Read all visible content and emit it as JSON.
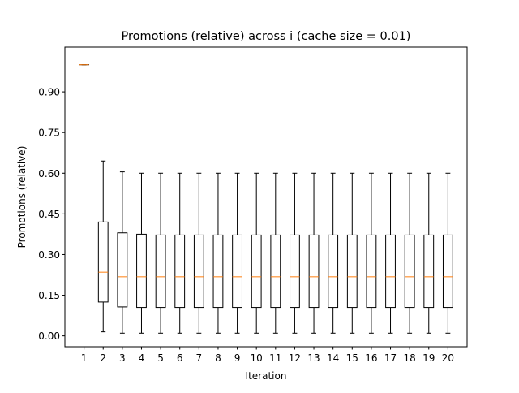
{
  "chart_data": {
    "type": "boxplot",
    "title": "Promotions (relative) across i (cache size = 0.01)",
    "xlabel": "Iteration",
    "ylabel": "Promotions (relative)",
    "ylim": [
      -0.04,
      1.065
    ],
    "yticks": [
      0.0,
      0.15,
      0.3,
      0.45,
      0.6,
      0.75,
      0.9
    ],
    "ytick_labels": [
      "0.00",
      "0.15",
      "0.30",
      "0.45",
      "0.60",
      "0.75",
      "0.90"
    ],
    "categories": [
      "1",
      "2",
      "3",
      "4",
      "5",
      "6",
      "7",
      "8",
      "9",
      "10",
      "11",
      "12",
      "13",
      "14",
      "15",
      "16",
      "17",
      "18",
      "19",
      "20"
    ],
    "boxes": [
      {
        "whislo": 1.0,
        "q1": 1.0,
        "med": 1.0,
        "q3": 1.0,
        "whishi": 1.0
      },
      {
        "whislo": 0.015,
        "q1": 0.125,
        "med": 0.235,
        "q3": 0.42,
        "whishi": 0.645
      },
      {
        "whislo": 0.01,
        "q1": 0.107,
        "med": 0.218,
        "q3": 0.38,
        "whishi": 0.605
      },
      {
        "whislo": 0.01,
        "q1": 0.105,
        "med": 0.218,
        "q3": 0.375,
        "whishi": 0.6
      },
      {
        "whislo": 0.01,
        "q1": 0.105,
        "med": 0.218,
        "q3": 0.372,
        "whishi": 0.6
      },
      {
        "whislo": 0.01,
        "q1": 0.105,
        "med": 0.218,
        "q3": 0.372,
        "whishi": 0.6
      },
      {
        "whislo": 0.01,
        "q1": 0.105,
        "med": 0.218,
        "q3": 0.372,
        "whishi": 0.6
      },
      {
        "whislo": 0.01,
        "q1": 0.105,
        "med": 0.218,
        "q3": 0.372,
        "whishi": 0.6
      },
      {
        "whislo": 0.01,
        "q1": 0.105,
        "med": 0.218,
        "q3": 0.372,
        "whishi": 0.6
      },
      {
        "whislo": 0.01,
        "q1": 0.105,
        "med": 0.218,
        "q3": 0.372,
        "whishi": 0.6
      },
      {
        "whislo": 0.01,
        "q1": 0.105,
        "med": 0.218,
        "q3": 0.372,
        "whishi": 0.6
      },
      {
        "whislo": 0.01,
        "q1": 0.105,
        "med": 0.218,
        "q3": 0.372,
        "whishi": 0.6
      },
      {
        "whislo": 0.01,
        "q1": 0.105,
        "med": 0.218,
        "q3": 0.372,
        "whishi": 0.6
      },
      {
        "whislo": 0.01,
        "q1": 0.105,
        "med": 0.218,
        "q3": 0.372,
        "whishi": 0.6
      },
      {
        "whislo": 0.01,
        "q1": 0.105,
        "med": 0.218,
        "q3": 0.372,
        "whishi": 0.6
      },
      {
        "whislo": 0.01,
        "q1": 0.105,
        "med": 0.218,
        "q3": 0.372,
        "whishi": 0.6
      },
      {
        "whislo": 0.01,
        "q1": 0.105,
        "med": 0.218,
        "q3": 0.372,
        "whishi": 0.6
      },
      {
        "whislo": 0.01,
        "q1": 0.105,
        "med": 0.218,
        "q3": 0.372,
        "whishi": 0.6
      },
      {
        "whislo": 0.01,
        "q1": 0.105,
        "med": 0.218,
        "q3": 0.372,
        "whishi": 0.6
      },
      {
        "whislo": 0.01,
        "q1": 0.105,
        "med": 0.218,
        "q3": 0.372,
        "whishi": 0.6
      }
    ],
    "colors": {
      "box": "#000000",
      "median": "#ff7f0e",
      "background": "#ffffff"
    },
    "grid": false,
    "legend": "none"
  }
}
